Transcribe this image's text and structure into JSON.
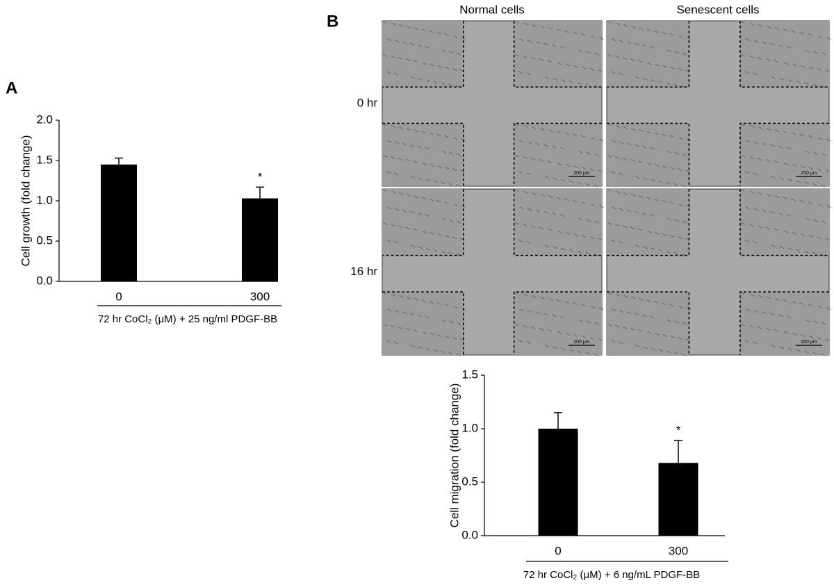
{
  "panel_labels": [
    "A",
    "B"
  ],
  "micrographs": {
    "columns": [
      "Normal cells",
      "Senescent cells"
    ],
    "rows": [
      "0 hr",
      "16 hr"
    ],
    "scale_bar": "200 μm"
  },
  "chart_data": [
    {
      "type": "bar",
      "ylabel": "Cell growth (fold change)",
      "xlabel": "72 hr CoCl₂ (μM) + 25 ng/ml PDGF-BB",
      "categories": [
        "0",
        "300"
      ],
      "values": [
        1.45,
        1.03
      ],
      "errors": [
        0.08,
        0.14
      ],
      "significance": [
        null,
        "*"
      ],
      "color": "#000000",
      "ylim": [
        0,
        2
      ],
      "yticks": [
        {
          "value": 0,
          "label": "0.0"
        },
        {
          "value": 0.5,
          "label": "0.5"
        },
        {
          "value": 1,
          "label": "1.0"
        },
        {
          "value": 1.5,
          "label": "1.5"
        },
        {
          "value": 2,
          "label": "2.0"
        }
      ]
    },
    {
      "type": "bar",
      "ylabel": "Cell migration (fold change)",
      "xlabel": "72 hr CoCl₂ (μM) + 6 ng/mL PDGF-BB",
      "categories": [
        "0",
        "300"
      ],
      "values": [
        1.0,
        0.68
      ],
      "errors": [
        0.15,
        0.21
      ],
      "significance": [
        null,
        "*"
      ],
      "color": "#000000",
      "ylim": [
        0,
        1.5
      ],
      "yticks": [
        {
          "value": 0,
          "label": "0.0"
        },
        {
          "value": 0.5,
          "label": "0.5"
        },
        {
          "value": 1,
          "label": "1.0"
        },
        {
          "value": 1.5,
          "label": "1.5"
        }
      ]
    }
  ]
}
